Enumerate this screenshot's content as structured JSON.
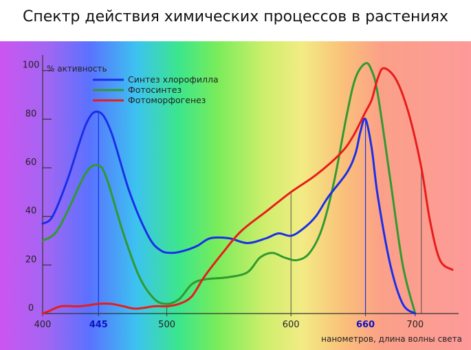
{
  "page_title": "Спектр действия химических процессов в растениях",
  "chart_data": {
    "type": "line",
    "title": "Спектр действия химических процессов в растениях",
    "ylabel": "% активность",
    "xlabel": "нанометров, длина волны света",
    "xlim": [
      400,
      735
    ],
    "ylim": [
      0,
      105
    ],
    "x_ticks": [
      {
        "value": 400,
        "label": "400"
      },
      {
        "value": 445,
        "label": "445",
        "highlight": true
      },
      {
        "value": 500,
        "label": "500"
      },
      {
        "value": 600,
        "label": "600"
      },
      {
        "value": 660,
        "label": "660",
        "highlight": true
      },
      {
        "value": 700,
        "label": "700"
      }
    ],
    "y_ticks": [
      {
        "value": 0,
        "label": "0"
      },
      {
        "value": 20,
        "label": "20"
      },
      {
        "value": 40,
        "label": "40"
      },
      {
        "value": 60,
        "label": "60"
      },
      {
        "value": 80,
        "label": "80"
      },
      {
        "value": 100,
        "label": "100"
      }
    ],
    "highlight_color": "#1010c0",
    "legend_position": "top-left",
    "spectrum_background": true,
    "series": [
      {
        "name": "Синтез хлорофилла",
        "color": "#1a2ee8",
        "x": [
          400,
          408,
          420,
          435,
          445,
          455,
          470,
          485,
          495,
          505,
          515,
          525,
          535,
          550,
          565,
          580,
          590,
          600,
          610,
          620,
          630,
          645,
          652,
          656,
          660,
          665,
          670,
          680,
          690,
          700
        ],
        "y": [
          37,
          40,
          55,
          78,
          83,
          75,
          50,
          32,
          26,
          25,
          26,
          28,
          31,
          31,
          29,
          31,
          33,
          32,
          35,
          40,
          48,
          58,
          66,
          75,
          80,
          68,
          48,
          20,
          4,
          0
        ]
      },
      {
        "name": "Фотосинтез",
        "color": "#2f9a2f",
        "x": [
          400,
          410,
          420,
          435,
          445,
          452,
          465,
          478,
          490,
          500,
          510,
          520,
          530,
          550,
          565,
          575,
          585,
          595,
          605,
          615,
          625,
          635,
          645,
          652,
          660,
          665,
          670,
          680,
          690,
          700
        ],
        "y": [
          30,
          33,
          42,
          58,
          61,
          55,
          33,
          15,
          6,
          4,
          6,
          12,
          14,
          15,
          17,
          23,
          25,
          23,
          22,
          25,
          35,
          55,
          82,
          97,
          103,
          100,
          90,
          55,
          20,
          0
        ]
      },
      {
        "name": "Фотоморфогенез",
        "color": "#e81c1c",
        "x": [
          400,
          405,
          415,
          430,
          445,
          455,
          465,
          475,
          490,
          500,
          510,
          520,
          530,
          545,
          560,
          580,
          600,
          620,
          640,
          650,
          660,
          665,
          670,
          675,
          685,
          695,
          705,
          712,
          720,
          730
        ],
        "y": [
          0,
          1,
          3,
          3,
          4,
          4,
          3,
          2,
          3,
          3,
          4,
          7,
          15,
          25,
          34,
          42,
          50,
          57,
          66,
          73,
          83,
          88,
          97,
          101,
          96,
          82,
          60,
          38,
          22,
          18
        ]
      }
    ],
    "drop_lines": [
      {
        "series": 0,
        "x": 445
      },
      {
        "series": 2,
        "x": 500
      },
      {
        "series": 2,
        "x": 600
      },
      {
        "series": 0,
        "x": 660
      },
      {
        "series": 2,
        "x": 705
      }
    ]
  }
}
